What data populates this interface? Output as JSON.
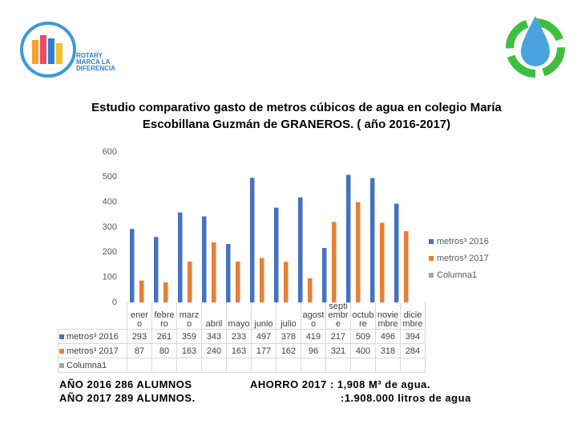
{
  "logo": {
    "text": [
      "ROTARY",
      "MARCA LA",
      "DIFERENCIA"
    ]
  },
  "chart_data": {
    "type": "bar",
    "title": "Estudio comparativo gasto de metros cúbicos de agua en colegio María Escobillana Guzmán de GRANEROS. ( año 2016-2017)",
    "categories": [
      "enero",
      "febrero",
      "marzo",
      "abril",
      "mayo",
      "junio",
      "julio",
      "agosto",
      "septiembre",
      "octubre",
      "noviembre",
      "diciembre"
    ],
    "series": [
      {
        "name": "metros³ 2016",
        "color": "#4472c4",
        "values": [
          293,
          261,
          359,
          343,
          233,
          497,
          378,
          419,
          217,
          509,
          496,
          394
        ]
      },
      {
        "name": "metros³ 2017",
        "color": "#ed7d31",
        "values": [
          87,
          80,
          163,
          240,
          163,
          177,
          162,
          96,
          321,
          400,
          318,
          284
        ]
      },
      {
        "name": "Columna1",
        "color": "#a5a5a5",
        "values": [
          null,
          null,
          null,
          null,
          null,
          null,
          null,
          null,
          null,
          null,
          null,
          null
        ]
      }
    ],
    "ylim": [
      0,
      600
    ],
    "yticks": [
      0,
      100,
      200,
      300,
      400,
      500,
      600
    ],
    "grid": false,
    "legend": "right"
  },
  "notes": {
    "left": [
      "AÑO 2016 286 ALUMNOS",
      "AÑO 2017 289 ALUMNOS."
    ],
    "right": [
      "AHORRO 2017 : 1,908 M³ de agua.",
      ":1.908.000 litros de agua"
    ]
  }
}
